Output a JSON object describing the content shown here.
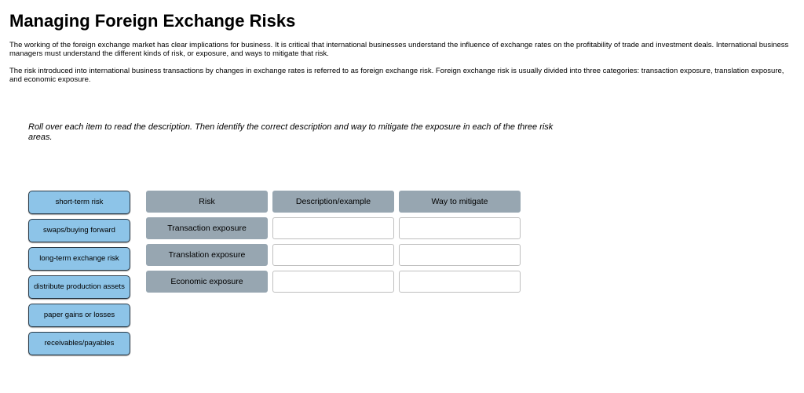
{
  "title": "Managing Foreign Exchange Risks",
  "title_fontsize": 22,
  "para_fontsize": 9.5,
  "instruction_fontsize": 11,
  "item_fontsize": 9.5,
  "table_fontsize": 10.5,
  "colors": {
    "drag_bg": "#8dc4e8",
    "drag_border": "#2a3a47",
    "table_header_bg": "#97a6b1",
    "drop_border": "#bfbfbf",
    "text": "#000000",
    "page_bg": "#ffffff"
  },
  "paragraphs": [
    "The working of the foreign exchange market has clear implications for business. It is critical that international businesses understand the influence of exchange rates on the profitability of trade and investment deals. International business managers must understand the different kinds of risk, or exposure, and ways to mitigate that risk.",
    "The risk introduced into international business transactions by changes in exchange rates is referred to as foreign exchange risk. Foreign exchange risk is usually divided into three categories: transaction exposure, translation exposure, and economic exposure."
  ],
  "instructions": "Roll over each item to read the description. Then identify the correct description and way to mitigate the exposure in each of the three risk areas.",
  "drag_items": [
    "short-term risk",
    "swaps/buying forward",
    "long-term exchange risk",
    "distribute production assets",
    "paper gains or losses",
    "receivables/payables"
  ],
  "table": {
    "headers": [
      "Risk",
      "Description/example",
      "Way to mitigate"
    ],
    "rows": [
      {
        "label": "Transaction exposure",
        "desc": "",
        "mitigate": ""
      },
      {
        "label": "Translation exposure",
        "desc": "",
        "mitigate": ""
      },
      {
        "label": "Economic exposure",
        "desc": "",
        "mitigate": ""
      }
    ]
  }
}
